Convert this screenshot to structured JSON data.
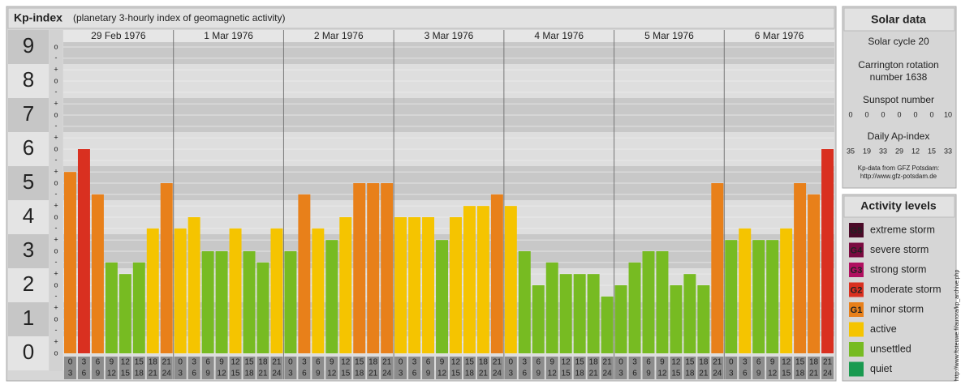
{
  "chart_data": {
    "type": "bar",
    "title": "Kp-index",
    "subtitle": "(planetary 3-hourly index of geomagnetic activity)",
    "ylim": [
      0,
      9.5
    ],
    "yticks": [
      0,
      1,
      2,
      3,
      4,
      5,
      6,
      7,
      8,
      9
    ],
    "minor_ticks": [
      {
        "value": 0,
        "label": "o"
      },
      {
        "value": 0.33,
        "label": "+"
      },
      {
        "value": 0.67,
        "label": "-"
      },
      {
        "value": 1,
        "label": "o"
      },
      {
        "value": 1.33,
        "label": "+"
      },
      {
        "value": 1.67,
        "label": "-"
      },
      {
        "value": 2,
        "label": "o"
      },
      {
        "value": 2.33,
        "label": "+"
      },
      {
        "value": 2.67,
        "label": "-"
      },
      {
        "value": 3,
        "label": "o"
      },
      {
        "value": 3.33,
        "label": "+"
      },
      {
        "value": 3.67,
        "label": "-"
      },
      {
        "value": 4,
        "label": "o"
      },
      {
        "value": 4.33,
        "label": "+"
      },
      {
        "value": 4.67,
        "label": "-"
      },
      {
        "value": 5,
        "label": "o"
      },
      {
        "value": 5.33,
        "label": "+"
      },
      {
        "value": 5.67,
        "label": "-"
      },
      {
        "value": 6,
        "label": "o"
      },
      {
        "value": 6.33,
        "label": "+"
      },
      {
        "value": 6.67,
        "label": "-"
      },
      {
        "value": 7,
        "label": "o"
      },
      {
        "value": 7.33,
        "label": "+"
      },
      {
        "value": 7.67,
        "label": "-"
      },
      {
        "value": 8,
        "label": "o"
      },
      {
        "value": 8.33,
        "label": "+"
      },
      {
        "value": 8.67,
        "label": "-"
      },
      {
        "value": 9,
        "label": "o"
      }
    ],
    "hours": [
      {
        "start": "0",
        "end": "3"
      },
      {
        "start": "3",
        "end": "6"
      },
      {
        "start": "6",
        "end": "9"
      },
      {
        "start": "9",
        "end": "12"
      },
      {
        "start": "12",
        "end": "15"
      },
      {
        "start": "15",
        "end": "18"
      },
      {
        "start": "18",
        "end": "21"
      },
      {
        "start": "21",
        "end": "24"
      }
    ],
    "days": [
      {
        "date": "29 Feb 1976",
        "values": [
          5.33,
          6,
          4.67,
          2.67,
          2.33,
          2.67,
          3.67,
          5
        ],
        "colors": [
          "#e8801a",
          "#d93020",
          "#e8801a",
          "#77bb22",
          "#77bb22",
          "#77bb22",
          "#f5c400",
          "#e8801a"
        ]
      },
      {
        "date": "1 Mar 1976",
        "values": [
          3.67,
          4,
          3,
          3,
          3.67,
          3,
          2.67,
          3.67
        ],
        "colors": [
          "#f5c400",
          "#f5c400",
          "#77bb22",
          "#77bb22",
          "#f5c400",
          "#77bb22",
          "#77bb22",
          "#f5c400"
        ]
      },
      {
        "date": "2 Mar 1976",
        "values": [
          3,
          4.67,
          3.67,
          3.33,
          4,
          5,
          5,
          5
        ],
        "colors": [
          "#77bb22",
          "#e8801a",
          "#f5c400",
          "#77bb22",
          "#f5c400",
          "#e8801a",
          "#e8801a",
          "#e8801a"
        ]
      },
      {
        "date": "3 Mar 1976",
        "values": [
          4,
          4,
          4,
          3.33,
          4,
          4.33,
          4.33,
          4.67
        ],
        "colors": [
          "#f5c400",
          "#f5c400",
          "#f5c400",
          "#77bb22",
          "#f5c400",
          "#f5c400",
          "#f5c400",
          "#e8801a"
        ]
      },
      {
        "date": "4 Mar 1976",
        "values": [
          4.33,
          3,
          2,
          2.67,
          2.33,
          2.33,
          2.33,
          1.67
        ],
        "colors": [
          "#f5c400",
          "#77bb22",
          "#77bb22",
          "#77bb22",
          "#77bb22",
          "#77bb22",
          "#77bb22",
          "#77bb22"
        ]
      },
      {
        "date": "5 Mar 1976",
        "values": [
          2,
          2.67,
          3,
          3,
          2,
          2.33,
          2,
          5
        ],
        "colors": [
          "#77bb22",
          "#77bb22",
          "#77bb22",
          "#77bb22",
          "#77bb22",
          "#77bb22",
          "#77bb22",
          "#e8801a"
        ]
      },
      {
        "date": "6 Mar 1976",
        "values": [
          3.33,
          3.67,
          3.33,
          3.33,
          3.67,
          5,
          4.67,
          6
        ],
        "colors": [
          "#77bb22",
          "#f5c400",
          "#77bb22",
          "#77bb22",
          "#f5c400",
          "#e8801a",
          "#e8801a",
          "#d93020"
        ]
      }
    ]
  },
  "solar": {
    "title": "Solar data",
    "cycle": "Solar cycle 20",
    "carrington": [
      "Carrington rotation",
      "number 1638"
    ],
    "sunspot_label": "Sunspot number",
    "sunspot": [
      0,
      0,
      0,
      0,
      0,
      0,
      10
    ],
    "ap_label": "Daily Ap-index",
    "ap": [
      35,
      19,
      33,
      29,
      12,
      15,
      33
    ],
    "source": [
      "Kp-data from GFZ Potsdam:",
      "http://www.gfz-potsdam.de"
    ]
  },
  "levels": {
    "title": "Activity levels",
    "items": [
      {
        "code": "G5",
        "label": "extreme storm",
        "color": "#4a0a28"
      },
      {
        "code": "G4",
        "label": "severe storm",
        "color": "#7a0a40"
      },
      {
        "code": "G3",
        "label": "strong storm",
        "color": "#b01060"
      },
      {
        "code": "G2",
        "label": "moderate storm",
        "color": "#d93020"
      },
      {
        "code": "G1",
        "label": "minor storm",
        "color": "#e8801a"
      },
      {
        "label": "active",
        "color": "#f5c400"
      },
      {
        "label": "unsettled",
        "color": "#77bb22"
      },
      {
        "label": "quiet",
        "color": "#1a9a50"
      }
    ]
  },
  "watermark": "http://www.ftsteuwe.fi/aurora/kp_archive.php"
}
